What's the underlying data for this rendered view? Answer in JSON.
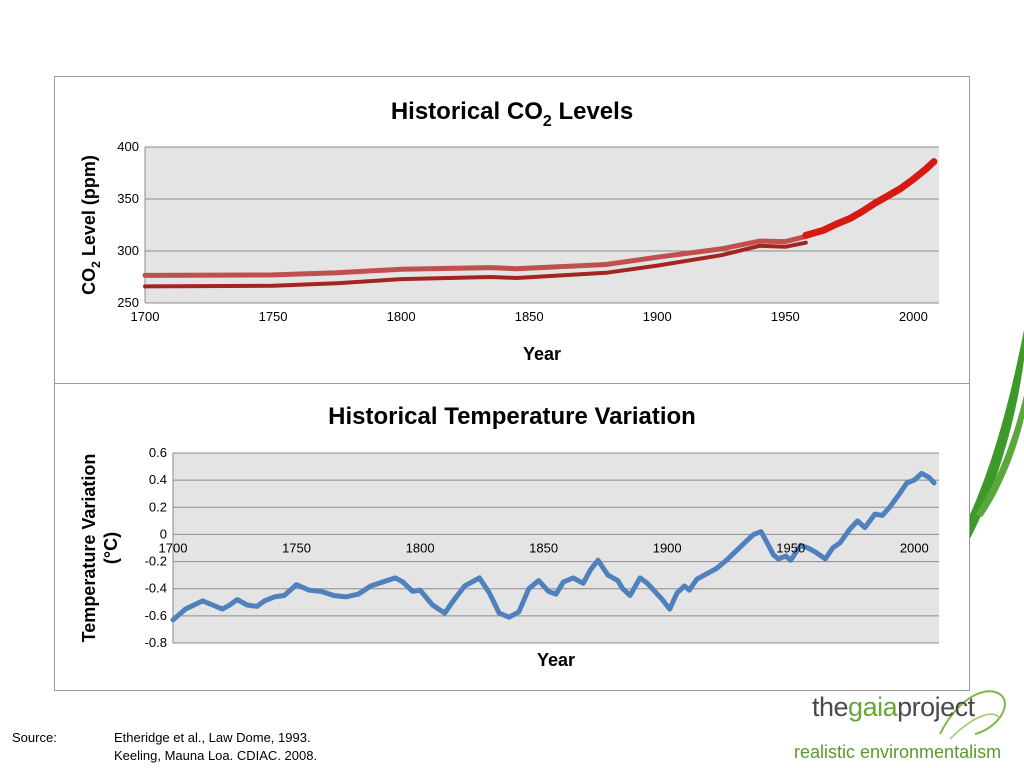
{
  "colors": {
    "background": "#ffffff",
    "swoosh_green": "#3d9a2a",
    "plot_bg": "#e4e4e4",
    "grid": "#8c8c8c",
    "co2_upper": "#c0504d",
    "co2_lower": "#a32520",
    "co2_recent": "#d51a12",
    "temp_line": "#4f81bd",
    "logo_gray": "#4a4a4a",
    "logo_green": "#6aa637"
  },
  "chart_data": [
    {
      "type": "line",
      "title_main": "Historical CO",
      "title_sub": "2",
      "title_end": " Levels",
      "xlabel": "Year",
      "ylabel_main": "CO",
      "ylabel_sub": "2",
      "ylabel_end": " Level (ppm)",
      "xlim": [
        1700,
        2010
      ],
      "ylim": [
        250,
        400
      ],
      "xticks": [
        1700,
        1750,
        1800,
        1850,
        1900,
        1950,
        2000
      ],
      "yticks": [
        250,
        300,
        350,
        400
      ],
      "grid": true,
      "series": [
        {
          "color": "#c0504d",
          "x": [
            1700,
            1750,
            1775,
            1800,
            1835,
            1845,
            1880,
            1900,
            1925,
            1940,
            1950,
            1958
          ],
          "y": [
            276.5,
            277,
            279,
            282.5,
            284,
            283,
            287,
            294,
            302,
            309.5,
            309,
            314
          ]
        },
        {
          "color": "#a32520",
          "x": [
            1700,
            1750,
            1775,
            1800,
            1835,
            1845,
            1880,
            1900,
            1925,
            1940,
            1950,
            1958
          ],
          "y": [
            266,
            266.5,
            269,
            273,
            275,
            274,
            279,
            286,
            296,
            305,
            304,
            308
          ]
        },
        {
          "color": "#d51a12",
          "x": [
            1958,
            1965,
            1970,
            1975,
            1980,
            1985,
            1990,
            1995,
            2000,
            2005,
            2008
          ],
          "y": [
            315,
            320,
            326,
            331,
            338,
            346,
            353,
            360,
            369,
            379,
            386
          ]
        }
      ]
    },
    {
      "type": "line",
      "title": "Historical Temperature Variation",
      "xlabel": "Year",
      "ylabel": "Temperature Variation (°C)",
      "xlim": [
        1700,
        2010
      ],
      "ylim": [
        -0.8,
        0.6
      ],
      "xticks": [
        1700,
        1750,
        1800,
        1850,
        1900,
        1950,
        2000
      ],
      "yticks": [
        -0.8,
        -0.6,
        -0.4,
        -0.2,
        0,
        0.2,
        0.4,
        0.6
      ],
      "grid": true,
      "series": [
        {
          "color": "#4f81bd",
          "x": [
            1700,
            1705,
            1712,
            1716,
            1720,
            1723,
            1726,
            1730,
            1734,
            1737,
            1741,
            1745,
            1750,
            1755,
            1760,
            1765,
            1770,
            1775,
            1780,
            1785,
            1790,
            1793,
            1797,
            1800,
            1805,
            1810,
            1813,
            1818,
            1824,
            1828,
            1832,
            1836,
            1840,
            1844,
            1848,
            1852,
            1855,
            1858,
            1862,
            1866,
            1869,
            1872,
            1876,
            1880,
            1882,
            1885,
            1889,
            1892,
            1895,
            1898,
            1901,
            1904,
            1907,
            1909,
            1912,
            1916,
            1920,
            1924,
            1928,
            1932,
            1935,
            1938,
            1941,
            1943,
            1945,
            1948,
            1950,
            1954,
            1957,
            1960,
            1964,
            1967,
            1970,
            1974,
            1977,
            1980,
            1984,
            1987,
            1990,
            1994,
            1997,
            2000,
            2003,
            2006,
            2008
          ],
          "y": [
            -0.63,
            -0.55,
            -0.49,
            -0.52,
            -0.55,
            -0.52,
            -0.48,
            -0.52,
            -0.53,
            -0.49,
            -0.46,
            -0.45,
            -0.37,
            -0.41,
            -0.42,
            -0.45,
            -0.46,
            -0.44,
            -0.38,
            -0.35,
            -0.32,
            -0.35,
            -0.42,
            -0.41,
            -0.52,
            -0.58,
            -0.5,
            -0.38,
            -0.32,
            -0.43,
            -0.58,
            -0.61,
            -0.57,
            -0.4,
            -0.34,
            -0.42,
            -0.44,
            -0.35,
            -0.32,
            -0.36,
            -0.26,
            -0.19,
            -0.3,
            -0.34,
            -0.4,
            -0.45,
            -0.32,
            -0.36,
            -0.42,
            -0.48,
            -0.55,
            -0.43,
            -0.38,
            -0.41,
            -0.33,
            -0.29,
            -0.25,
            -0.19,
            -0.12,
            -0.05,
            0.0,
            0.02,
            -0.08,
            -0.15,
            -0.18,
            -0.16,
            -0.19,
            -0.08,
            -0.1,
            -0.13,
            -0.18,
            -0.1,
            -0.06,
            0.04,
            0.1,
            0.05,
            0.15,
            0.14,
            0.2,
            0.3,
            0.38,
            0.4,
            0.45,
            0.42,
            0.38
          ]
        }
      ]
    }
  ],
  "source": {
    "label": "Source:",
    "line1": "Etheridge et al.,  Law Dome,  1993.",
    "line2": "Keeling, Mauna Loa. CDIAC. 2008."
  },
  "logo": {
    "the": "the",
    "gaia": "gaia",
    "project": "project",
    "tagline": "realistic environmentalism"
  }
}
